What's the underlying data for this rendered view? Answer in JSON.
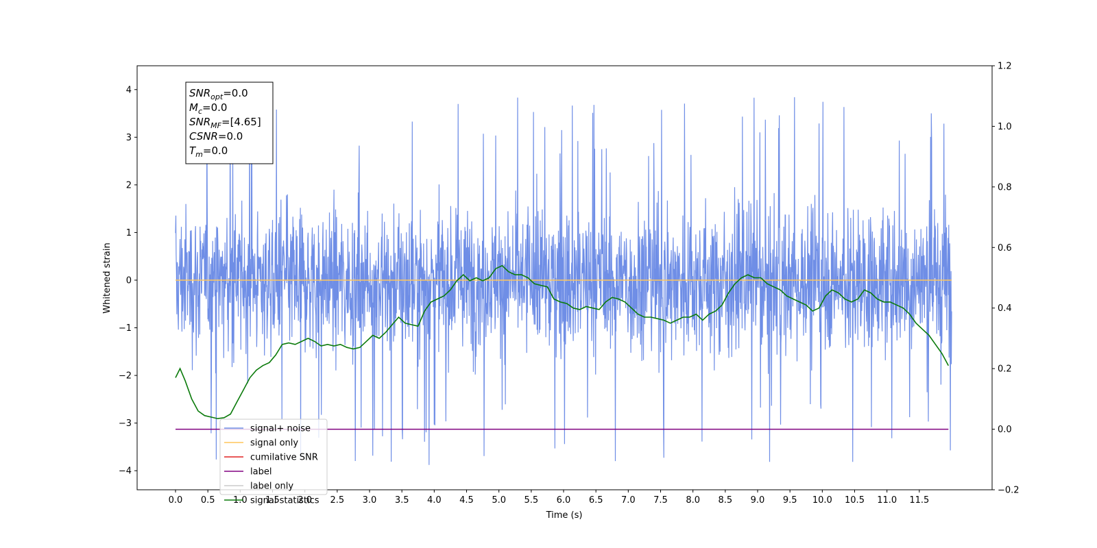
{
  "chart_data": {
    "type": "line",
    "xlabel": "Time (s)",
    "ylabel": "Whitened strain",
    "xlim": [
      -0.6,
      12.5
    ],
    "ylim": [
      -4.4,
      4.5
    ],
    "y2lim": [
      -0.2,
      1.2
    ],
    "x_ticks": [
      0.0,
      0.5,
      1.0,
      1.5,
      2.0,
      2.5,
      3.0,
      3.5,
      4.0,
      4.5,
      5.0,
      5.5,
      6.0,
      6.5,
      7.0,
      7.5,
      8.0,
      8.5,
      9.0,
      9.5,
      10.0,
      10.5,
      11.0,
      11.5
    ],
    "x_tick_labels": [
      "0.0",
      "0.5",
      "1.0",
      "1.5",
      "2.0",
      "2.5",
      "3.0",
      "3.5",
      "4.0",
      "4.5",
      "5.0",
      "5.5",
      "6.0",
      "6.5",
      "7.0",
      "7.5",
      "8.0",
      "8.5",
      "9.0",
      "9.5",
      "10.0",
      "10.5",
      "11.0",
      "11.5"
    ],
    "y_ticks": [
      4,
      3,
      2,
      1,
      0,
      -1,
      -2,
      -3,
      -4
    ],
    "y_tick_labels": [
      "4",
      "3",
      "2",
      "1",
      "0",
      "−1",
      "−2",
      "−3",
      "−4"
    ],
    "y2_ticks": [
      1.2,
      1.0,
      0.8,
      0.6,
      0.4,
      0.2,
      0.0,
      -0.2
    ],
    "y2_tick_labels": [
      "1.2",
      "1.0",
      "0.8",
      "0.6",
      "0.4",
      "0.2",
      "0.0",
      "−0.2"
    ],
    "grid": false,
    "legend_position": "lower-left",
    "annotation": {
      "lines": [
        {
          "base": "SNR",
          "sub": "opt",
          "value": "=0.0"
        },
        {
          "base": "M",
          "sub": "c",
          "value": "=0.0"
        },
        {
          "base": "SNR",
          "sub": "MF",
          "value": "=[4.65]"
        },
        {
          "base": "CSNR",
          "sub": "",
          "value": "=0.0"
        },
        {
          "base": "T",
          "sub": "m",
          "value": "=0.0"
        }
      ]
    },
    "series": [
      {
        "name": "signal+ noise",
        "axis": "left",
        "color": "#6f8ee6",
        "style": "noise",
        "x_range": [
          0.0,
          12.0
        ],
        "band": [
          -1.7,
          1.7
        ],
        "peak_range": [
          -3.9,
          4.1
        ]
      },
      {
        "name": "signal only",
        "axis": "left",
        "color": "#ffc65a",
        "x": [
          0.0,
          12.0
        ],
        "y": [
          0,
          0
        ]
      },
      {
        "name": "cumilative SNR",
        "axis": "right",
        "color": "#e02020",
        "x": [],
        "y": []
      },
      {
        "name": "label",
        "axis": "right",
        "color": "#800080",
        "x": [
          0.0,
          11.95
        ],
        "y": [
          0.0,
          0.0
        ]
      },
      {
        "name": "label only",
        "axis": "right",
        "color": "#cccccc",
        "hidden": true,
        "x": [],
        "y": []
      },
      {
        "name": "signal statistics",
        "axis": "right",
        "color": "#0a7a0a",
        "x": [
          0.0,
          0.07,
          0.15,
          0.25,
          0.35,
          0.45,
          0.55,
          0.65,
          0.75,
          0.85,
          0.95,
          1.05,
          1.15,
          1.25,
          1.35,
          1.45,
          1.55,
          1.65,
          1.75,
          1.85,
          1.95,
          2.05,
          2.15,
          2.25,
          2.35,
          2.45,
          2.55,
          2.65,
          2.75,
          2.85,
          2.95,
          3.05,
          3.15,
          3.25,
          3.35,
          3.45,
          3.55,
          3.65,
          3.75,
          3.85,
          3.95,
          4.05,
          4.15,
          4.25,
          4.35,
          4.45,
          4.55,
          4.65,
          4.75,
          4.85,
          4.95,
          5.05,
          5.15,
          5.25,
          5.35,
          5.45,
          5.55,
          5.65,
          5.75,
          5.85,
          5.95,
          6.05,
          6.15,
          6.25,
          6.35,
          6.45,
          6.55,
          6.65,
          6.75,
          6.85,
          6.95,
          7.05,
          7.15,
          7.25,
          7.35,
          7.45,
          7.55,
          7.65,
          7.75,
          7.85,
          7.95,
          8.05,
          8.15,
          8.25,
          8.35,
          8.45,
          8.55,
          8.65,
          8.75,
          8.85,
          8.95,
          9.05,
          9.15,
          9.25,
          9.35,
          9.45,
          9.55,
          9.65,
          9.75,
          9.85,
          9.95,
          10.05,
          10.15,
          10.25,
          10.35,
          10.45,
          10.55,
          10.65,
          10.75,
          10.85,
          10.95,
          11.05,
          11.15,
          11.25,
          11.35,
          11.45,
          11.55,
          11.65,
          11.75,
          11.85,
          11.95
        ],
        "y": [
          0.17,
          0.2,
          0.16,
          0.1,
          0.06,
          0.045,
          0.04,
          0.035,
          0.038,
          0.05,
          0.09,
          0.13,
          0.17,
          0.195,
          0.21,
          0.22,
          0.245,
          0.28,
          0.285,
          0.28,
          0.29,
          0.3,
          0.29,
          0.275,
          0.28,
          0.275,
          0.28,
          0.27,
          0.265,
          0.27,
          0.29,
          0.31,
          0.3,
          0.32,
          0.345,
          0.37,
          0.35,
          0.345,
          0.34,
          0.39,
          0.42,
          0.43,
          0.44,
          0.46,
          0.49,
          0.51,
          0.49,
          0.5,
          0.49,
          0.5,
          0.53,
          0.54,
          0.52,
          0.51,
          0.51,
          0.5,
          0.48,
          0.475,
          0.47,
          0.43,
          0.42,
          0.415,
          0.4,
          0.395,
          0.405,
          0.4,
          0.395,
          0.42,
          0.435,
          0.43,
          0.42,
          0.4,
          0.38,
          0.37,
          0.37,
          0.365,
          0.36,
          0.35,
          0.36,
          0.37,
          0.37,
          0.38,
          0.36,
          0.38,
          0.39,
          0.41,
          0.45,
          0.48,
          0.5,
          0.51,
          0.5,
          0.5,
          0.48,
          0.47,
          0.46,
          0.44,
          0.43,
          0.42,
          0.41,
          0.39,
          0.4,
          0.44,
          0.46,
          0.45,
          0.43,
          0.42,
          0.43,
          0.46,
          0.45,
          0.43,
          0.42,
          0.42,
          0.41,
          0.4,
          0.38,
          0.35,
          0.33,
          0.31,
          0.28,
          0.25,
          0.21
        ]
      }
    ]
  }
}
